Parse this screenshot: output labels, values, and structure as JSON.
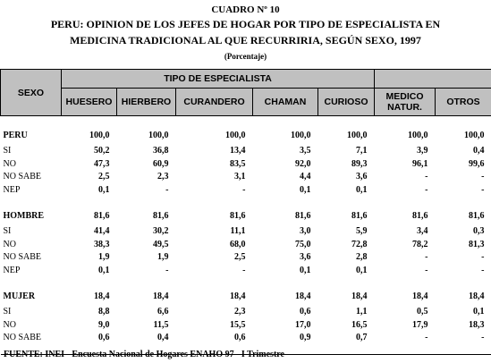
{
  "header": {
    "number": "CUADRO Nº 10",
    "title_lines": [
      "PERU: OPINION DE LOS JEFES DE HOGAR POR TIPO DE ESPECIALISTA EN",
      "MEDICINA TRADICIONAL AL QUE RECURRIRIA, SEGÚN SEXO, 1997"
    ],
    "unit": "(Porcentaje)"
  },
  "table": {
    "sexo": "SEXO",
    "group": "TIPO DE ESPECIALISTA",
    "columns": [
      "HUESERO",
      "HIERBERO",
      "CURANDERO",
      "CHAMAN",
      "CURIOSO",
      "MEDICO NATUR.",
      "OTROS"
    ],
    "groups": [
      {
        "name": "PERU",
        "total": [
          "100,0",
          "100,0",
          "100,0",
          "100,0",
          "100,0",
          "100,0",
          "100,0"
        ],
        "rows": [
          {
            "label": "SI",
            "values": [
              "50,2",
              "36,8",
              "13,4",
              "3,5",
              "7,1",
              "3,9",
              "0,4"
            ]
          },
          {
            "label": "NO",
            "values": [
              "47,3",
              "60,9",
              "83,5",
              "92,0",
              "89,3",
              "96,1",
              "99,6"
            ]
          },
          {
            "label": "NO SABE",
            "values": [
              "2,5",
              "2,3",
              "3,1",
              "4,4",
              "3,6",
              "-",
              "-"
            ]
          },
          {
            "label": "NEP",
            "values": [
              "0,1",
              "-",
              "-",
              "0,1",
              "0,1",
              "-",
              "-"
            ]
          }
        ]
      },
      {
        "name": "HOMBRE",
        "total": [
          "81,6",
          "81,6",
          "81,6",
          "81,6",
          "81,6",
          "81,6",
          "81,6"
        ],
        "rows": [
          {
            "label": "SI",
            "values": [
              "41,4",
              "30,2",
              "11,1",
              "3,0",
              "5,9",
              "3,4",
              "0,3"
            ]
          },
          {
            "label": "NO",
            "values": [
              "38,3",
              "49,5",
              "68,0",
              "75,0",
              "72,8",
              "78,2",
              "81,3"
            ]
          },
          {
            "label": "NO SABE",
            "values": [
              "1,9",
              "1,9",
              "2,5",
              "3,6",
              "2,8",
              "-",
              "-"
            ]
          },
          {
            "label": "NEP",
            "values": [
              "0,1",
              "-",
              "-",
              "0,1",
              "0,1",
              "-",
              "-"
            ]
          }
        ]
      },
      {
        "name": "MUJER",
        "total": [
          "18,4",
          "18,4",
          "18,4",
          "18,4",
          "18,4",
          "18,4",
          "18,4"
        ],
        "rows": [
          {
            "label": "SI",
            "values": [
              "8,8",
              "6,6",
              "2,3",
              "0,6",
              "1,1",
              "0,5",
              "0,1"
            ]
          },
          {
            "label": "NO",
            "values": [
              "9,0",
              "11,5",
              "15,5",
              "17,0",
              "16,5",
              "17,9",
              "18,3"
            ]
          },
          {
            "label": "NO SABE",
            "values": [
              "0,6",
              "0,4",
              "0,6",
              "0,9",
              "0,7",
              "-",
              "-"
            ]
          }
        ]
      }
    ]
  },
  "footer": "FUENTE: INEI - Encuesta Nacional de Hogares ENAHO 97 - I Trimestre"
}
